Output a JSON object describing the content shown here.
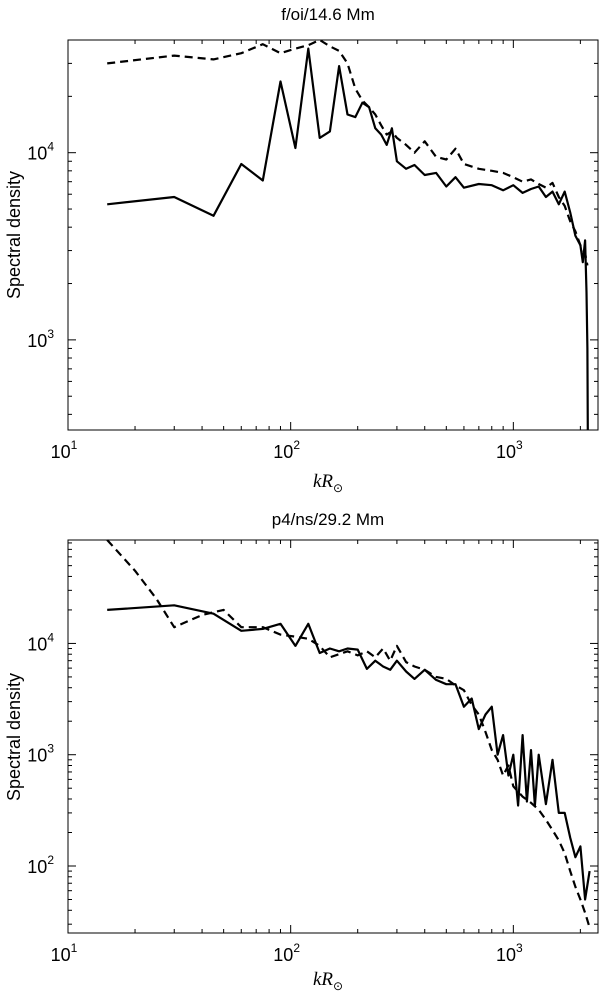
{
  "chart_data": [
    {
      "type": "line",
      "title": "f/oi/14.6 Mm",
      "xlabel": "kR⊙",
      "ylabel": "Spectral density",
      "x_scale": "log",
      "y_scale": "log",
      "xlim": [
        10,
        2400
      ],
      "ylim": [
        330,
        40000
      ],
      "x_ticks": [
        {
          "value": 10,
          "label": "10",
          "exp": "1"
        },
        {
          "value": 100,
          "label": "10",
          "exp": "2"
        },
        {
          "value": 1000,
          "label": "10",
          "exp": "3"
        }
      ],
      "y_ticks": [
        {
          "value": 1000,
          "label": "10",
          "exp": "3"
        },
        {
          "value": 10000,
          "label": "10",
          "exp": "4"
        }
      ],
      "grid": false,
      "legend": "none",
      "series": [
        {
          "style": "solid",
          "x": [
            15,
            30,
            45,
            60,
            75,
            90,
            105,
            120,
            135,
            150,
            165,
            180,
            195,
            210,
            225,
            240,
            255,
            270,
            285,
            300,
            330,
            360,
            400,
            450,
            500,
            550,
            600,
            700,
            800,
            900,
            1000,
            1100,
            1200,
            1300,
            1400,
            1500,
            1600,
            1700,
            1800,
            1900,
            2000,
            2050,
            2100,
            2130,
            2150,
            2160
          ],
          "y": [
            5300,
            5800,
            4600,
            8700,
            7100,
            24000,
            10600,
            36000,
            12000,
            13000,
            29000,
            16000,
            15500,
            18500,
            17500,
            13500,
            12500,
            11000,
            13500,
            9000,
            8200,
            8600,
            7600,
            7800,
            6600,
            7400,
            6500,
            6800,
            6700,
            6300,
            6700,
            6100,
            6400,
            6600,
            5800,
            6200,
            5300,
            6200,
            4800,
            3600,
            3200,
            2600,
            3400,
            1800,
            900,
            330
          ]
        },
        {
          "style": "dashed",
          "x": [
            15,
            30,
            45,
            60,
            75,
            90,
            105,
            120,
            135,
            150,
            165,
            180,
            195,
            210,
            225,
            240,
            255,
            270,
            285,
            300,
            330,
            360,
            400,
            450,
            500,
            550,
            600,
            700,
            800,
            900,
            1000,
            1100,
            1200,
            1300,
            1400,
            1500,
            1600,
            1700,
            1800,
            1900,
            2000,
            2100,
            2150
          ],
          "y": [
            30000,
            33000,
            31500,
            34000,
            38000,
            34000,
            36000,
            37500,
            40000,
            37000,
            35000,
            30000,
            22000,
            19000,
            17500,
            16000,
            14000,
            12500,
            13000,
            12000,
            11000,
            10000,
            11500,
            9500,
            9200,
            10500,
            8700,
            8200,
            8000,
            7800,
            7400,
            7000,
            7200,
            6800,
            6500,
            6900,
            5800,
            5200,
            4300,
            3800,
            3200,
            2900,
            2500
          ]
        }
      ]
    },
    {
      "type": "line",
      "title": "p4/ns/29.2 Mm",
      "xlabel": "kR⊙",
      "ylabel": "Spectral density",
      "x_scale": "log",
      "y_scale": "log",
      "xlim": [
        10,
        2400
      ],
      "ylim": [
        25,
        85000
      ],
      "x_ticks": [
        {
          "value": 10,
          "label": "10",
          "exp": "1"
        },
        {
          "value": 100,
          "label": "10",
          "exp": "2"
        },
        {
          "value": 1000,
          "label": "10",
          "exp": "3"
        }
      ],
      "y_ticks": [
        {
          "value": 100,
          "label": "10",
          "exp": "2"
        },
        {
          "value": 1000,
          "label": "10",
          "exp": "3"
        },
        {
          "value": 10000,
          "label": "10",
          "exp": "4"
        }
      ],
      "grid": false,
      "legend": "none",
      "series": [
        {
          "style": "solid",
          "x": [
            15,
            30,
            45,
            60,
            75,
            90,
            105,
            120,
            135,
            150,
            165,
            180,
            200,
            220,
            240,
            260,
            280,
            300,
            330,
            360,
            400,
            450,
            500,
            550,
            600,
            650,
            700,
            750,
            800,
            850,
            900,
            950,
            1000,
            1050,
            1100,
            1150,
            1200,
            1250,
            1300,
            1400,
            1500,
            1600,
            1700,
            1800,
            1900,
            2000,
            2100,
            2200
          ],
          "y": [
            20000,
            22000,
            18500,
            13000,
            13500,
            15000,
            9500,
            15000,
            8200,
            9000,
            8500,
            9000,
            8800,
            5900,
            7000,
            6200,
            5800,
            7000,
            5600,
            4800,
            5800,
            4700,
            4300,
            4300,
            2700,
            3200,
            1700,
            2300,
            2700,
            1000,
            1500,
            650,
            1000,
            350,
            1500,
            380,
            1100,
            350,
            1000,
            360,
            900,
            300,
            300,
            180,
            120,
            150,
            50,
            90
          ]
        },
        {
          "style": "dashed",
          "x": [
            15,
            20,
            25,
            30,
            40,
            50,
            60,
            75,
            90,
            105,
            120,
            135,
            150,
            165,
            180,
            200,
            220,
            240,
            260,
            280,
            300,
            330,
            360,
            400,
            450,
            500,
            550,
            600,
            650,
            700,
            750,
            800,
            850,
            900,
            950,
            1000,
            1100,
            1200,
            1300,
            1400,
            1500,
            1600,
            1700,
            1800,
            1900,
            2000,
            2100,
            2200
          ],
          "y": [
            85000,
            45000,
            25000,
            14000,
            18000,
            20000,
            14000,
            14000,
            12000,
            11500,
            11000,
            9500,
            7500,
            8000,
            8500,
            7800,
            8500,
            7500,
            9000,
            7000,
            9500,
            6800,
            6200,
            5800,
            5000,
            4800,
            4200,
            3800,
            2800,
            2300,
            1600,
            1100,
            900,
            650,
            800,
            520,
            420,
            370,
            320,
            260,
            210,
            170,
            130,
            90,
            65,
            50,
            38,
            28
          ]
        }
      ]
    }
  ]
}
